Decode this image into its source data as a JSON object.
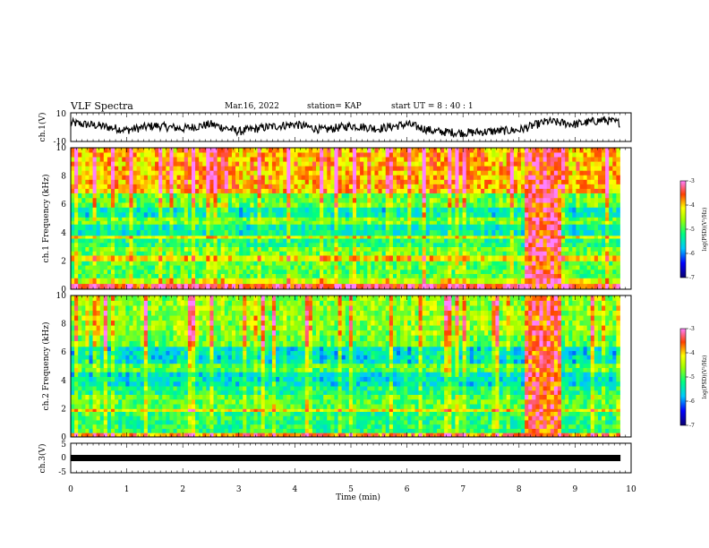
{
  "header": {
    "title": "VLF Spectra",
    "date": "Mar.16, 2022",
    "station": "station= KAP",
    "start_time": "start UT = 8 : 40 : 1"
  },
  "chart_data": [
    {
      "type": "line",
      "panel": "ch1-waveform",
      "ylabel": "ch.1(V)",
      "ylim": [
        -10,
        10
      ],
      "yticks": [
        "10",
        "-10"
      ],
      "xlim": [
        0,
        10
      ],
      "color": "#000000",
      "trend": {
        "x": [
          0,
          0.5,
          1,
          1.5,
          2,
          2.5,
          3,
          3.5,
          4,
          4.5,
          5,
          5.5,
          6,
          6.5,
          7,
          7.5,
          8,
          8.5,
          9,
          9.5,
          9.8
        ],
        "y": [
          3,
          1,
          -2,
          1,
          -1,
          2,
          -3,
          0,
          2,
          -2,
          1,
          -1,
          2,
          -3,
          -4,
          -3,
          -2,
          4,
          2,
          5,
          3
        ]
      }
    },
    {
      "type": "heatmap",
      "panel": "ch1-spectrogram",
      "ylabel": "ch.1 Frequency (kHz)",
      "ylim": [
        0,
        10
      ],
      "yticks": [
        "0",
        "2",
        "4",
        "6",
        "8",
        "10"
      ],
      "xlim": [
        0,
        9.8
      ],
      "colorbar": {
        "label": "log(PSD)(V²/Hz)",
        "range": [
          -7,
          -3
        ],
        "ticks": [
          "-3",
          "-4",
          "-5",
          "-6",
          "-7"
        ]
      },
      "bands_khz": [
        {
          "from": 0,
          "to": 0.4,
          "level": -3.5
        },
        {
          "from": 0.4,
          "to": 0.8,
          "level": -4.4
        },
        {
          "from": 0.8,
          "to": 2.0,
          "level": -5.0
        },
        {
          "from": 2.0,
          "to": 2.4,
          "level": -4.2
        },
        {
          "from": 2.4,
          "to": 3.0,
          "level": -4.9
        },
        {
          "from": 3.0,
          "to": 3.6,
          "level": -5.3
        },
        {
          "from": 3.6,
          "to": 3.8,
          "level": -4.4
        },
        {
          "from": 3.8,
          "to": 4.6,
          "level": -5.5
        },
        {
          "from": 4.6,
          "to": 5.1,
          "level": -4.9
        },
        {
          "from": 5.1,
          "to": 5.8,
          "level": -5.6
        },
        {
          "from": 5.8,
          "to": 6.8,
          "level": -5.0
        },
        {
          "from": 6.8,
          "to": 10,
          "level": -4.1
        }
      ],
      "burst": {
        "x": [
          8.1,
          8.75
        ],
        "level": -3.4
      }
    },
    {
      "type": "heatmap",
      "panel": "ch2-spectrogram",
      "ylabel": "ch.2 Frequency (kHz)",
      "ylim": [
        0,
        10
      ],
      "yticks": [
        "0",
        "2",
        "4",
        "6",
        "8",
        "10"
      ],
      "xlim": [
        0,
        9.8
      ],
      "colorbar": {
        "label": "log(PSD)(V²/Hz)",
        "range": [
          -7,
          -3
        ],
        "ticks": [
          "-3",
          "-4",
          "-5",
          "-6",
          "-7"
        ]
      },
      "bands_khz": [
        {
          "from": 0,
          "to": 0.3,
          "level": -3.8
        },
        {
          "from": 0.3,
          "to": 1.8,
          "level": -5.2
        },
        {
          "from": 1.8,
          "to": 2.0,
          "level": -4.3
        },
        {
          "from": 2.0,
          "to": 3.0,
          "level": -5.0
        },
        {
          "from": 3.0,
          "to": 3.6,
          "level": -5.3
        },
        {
          "from": 3.6,
          "to": 4.6,
          "level": -5.6
        },
        {
          "from": 4.6,
          "to": 5.2,
          "level": -5.0
        },
        {
          "from": 5.2,
          "to": 6.4,
          "level": -5.7
        },
        {
          "from": 6.4,
          "to": 7.2,
          "level": -5.0
        },
        {
          "from": 7.2,
          "to": 10,
          "level": -4.8
        }
      ],
      "burst": {
        "x": [
          8.1,
          8.75
        ],
        "level": -3.5
      }
    },
    {
      "type": "line",
      "panel": "ch3-waveform",
      "ylabel": "ch.3(V)",
      "ylim": [
        -5,
        5
      ],
      "yticks": [
        "5",
        "0",
        "-5"
      ],
      "xlim": [
        0,
        10
      ],
      "color": "#000000",
      "value": 0
    }
  ],
  "xaxis": {
    "label": "Time (min)",
    "ticks": [
      "0",
      "1",
      "2",
      "3",
      "4",
      "5",
      "6",
      "7",
      "8",
      "9",
      "10"
    ]
  }
}
